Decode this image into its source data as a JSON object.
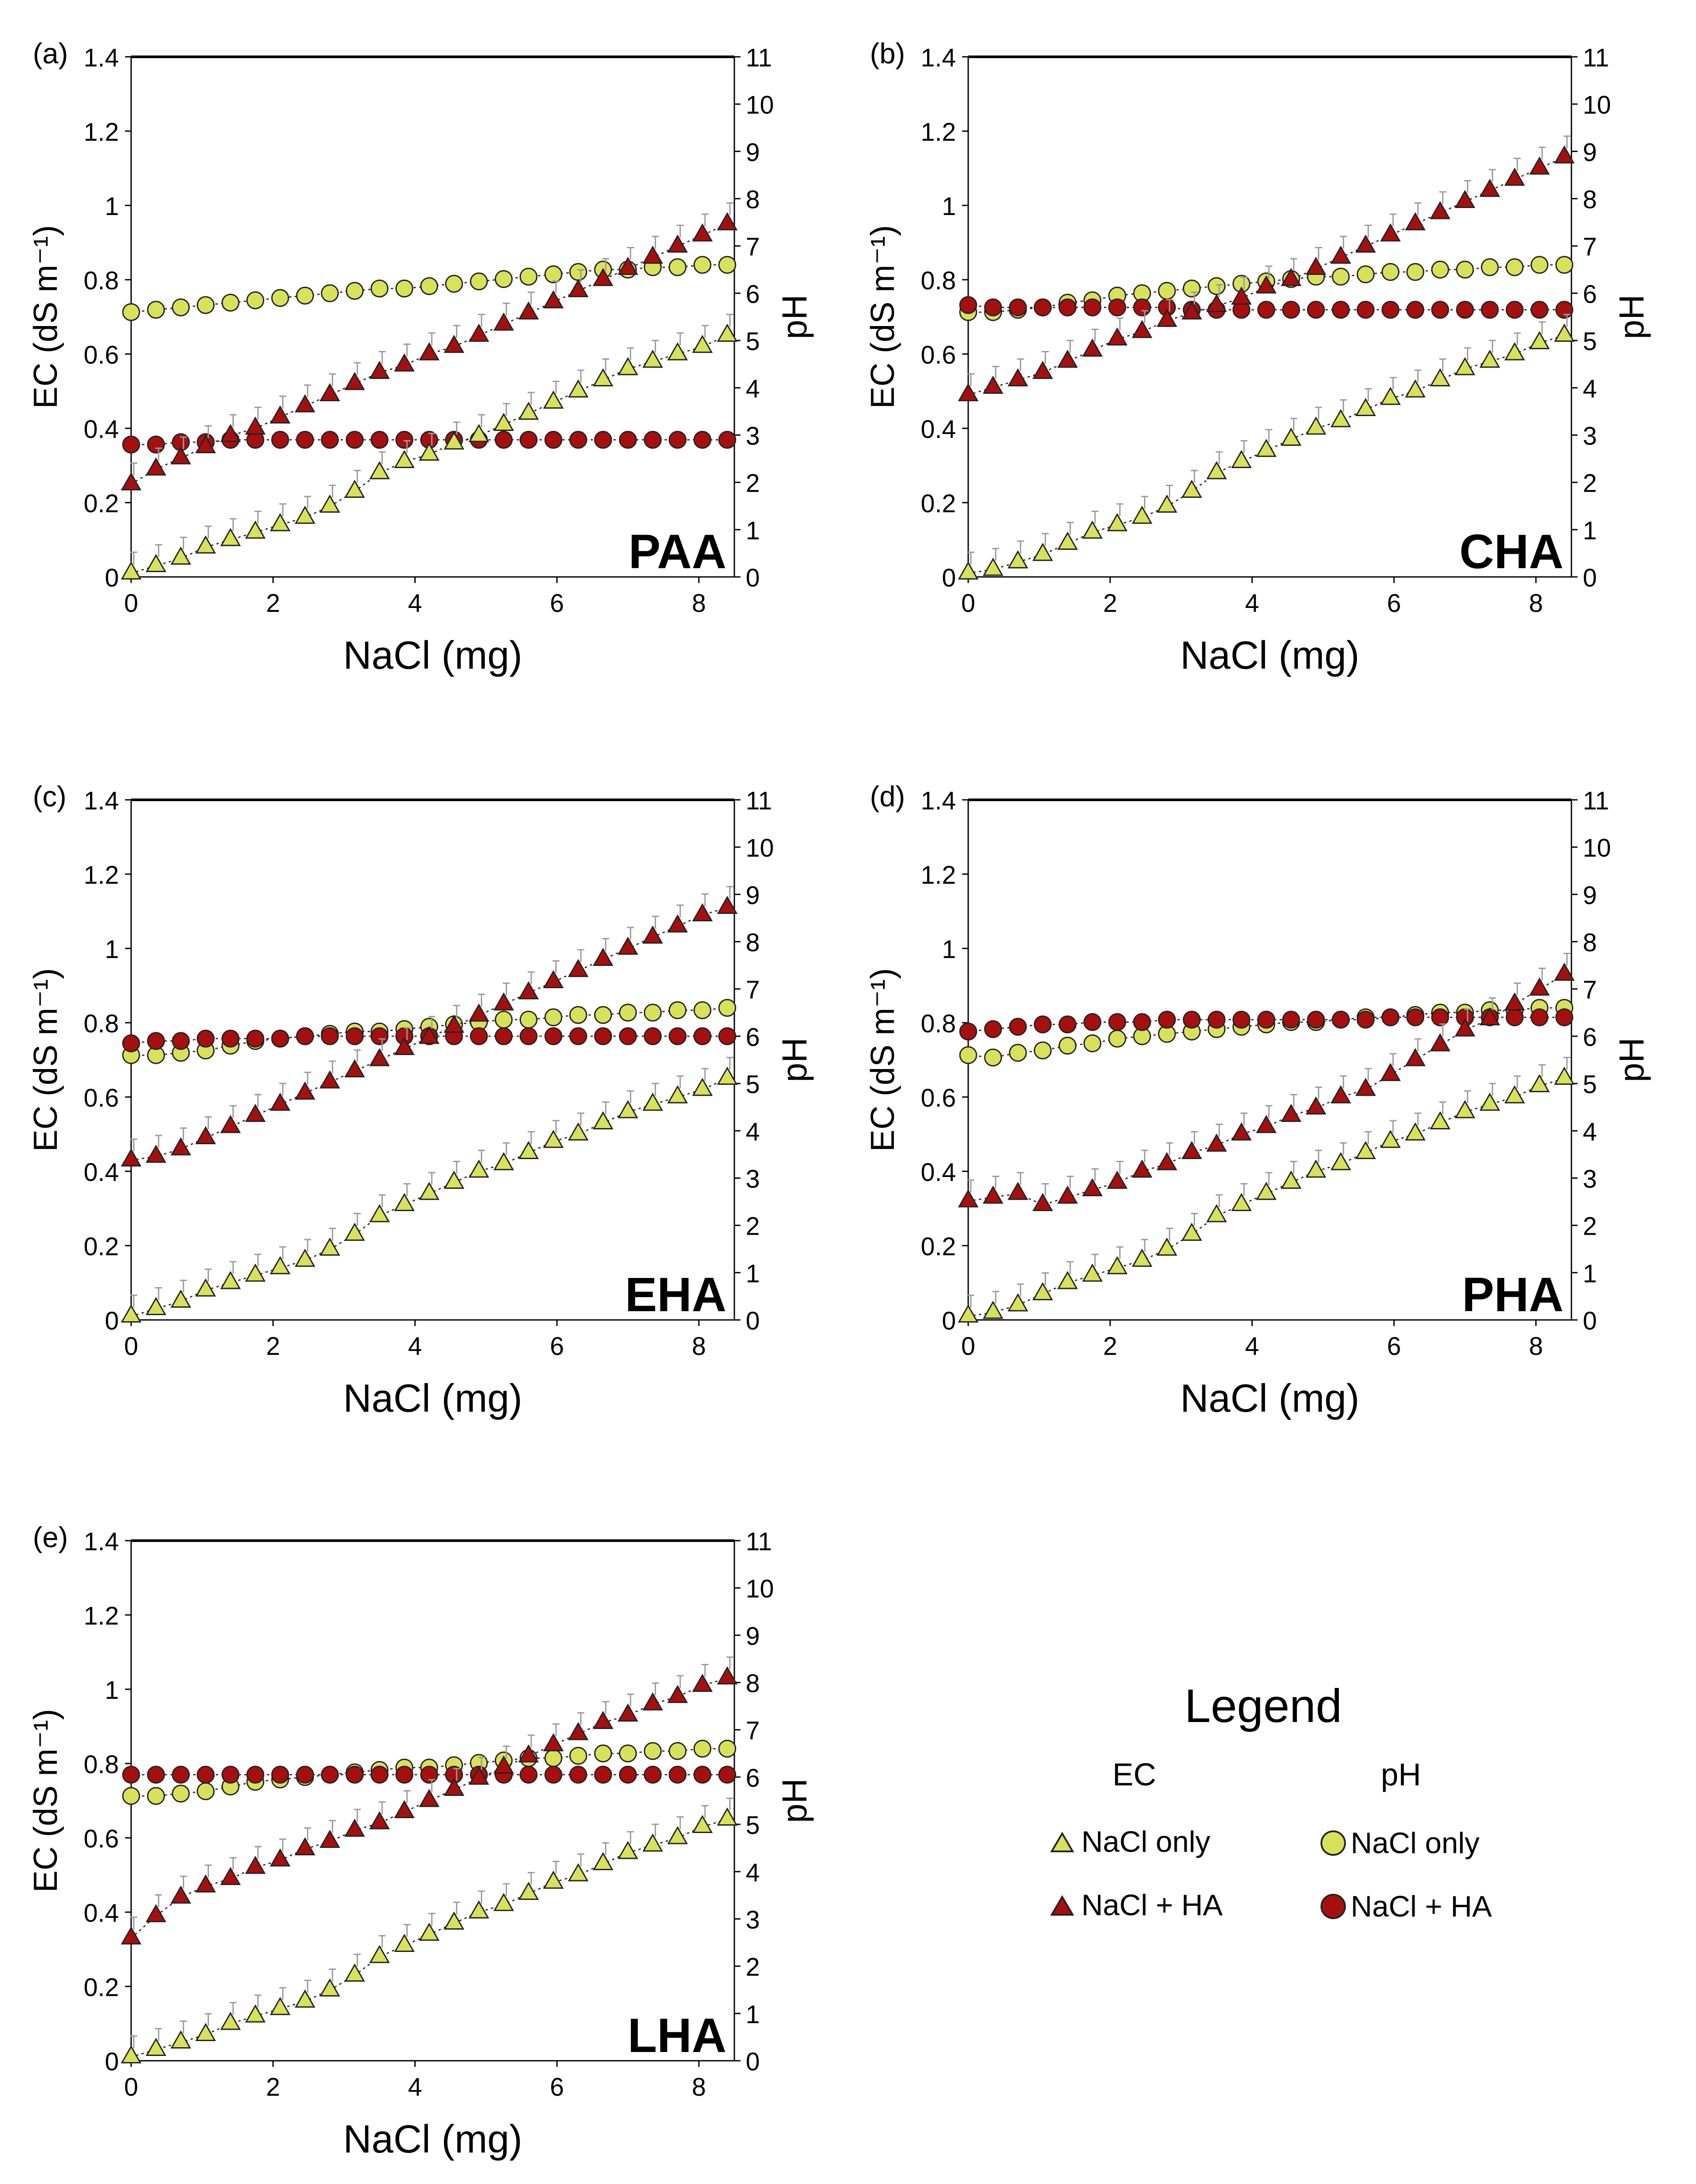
{
  "figure": {
    "colors": {
      "ec_salt": "#d9e15a",
      "ec_ha": "#a70f0f",
      "ph_salt": "#d9e15a",
      "ph_ha": "#a70f0f",
      "marker_edge": "#222222",
      "errorbar": "#9a9a9a",
      "trend": "#333333"
    }
  },
  "legend": {
    "title": "Legend",
    "ec_header": "EC",
    "ph_header": "pH",
    "ec_salt_label": "NaCl only",
    "ec_ha_label": "NaCl + HA",
    "ph_salt_label": "NaCl only",
    "ph_ha_label": "NaCl + HA"
  },
  "chart_data": [
    {
      "type": "scatter",
      "panel": "(a)",
      "title": "PAA",
      "xlabel": "NaCl (mg)",
      "ylabel": "EC (dS m⁻¹)",
      "y2label": "pH",
      "xlim": [
        0,
        8.5
      ],
      "ylim": [
        0,
        1.4
      ],
      "y2lim": [
        0,
        11
      ],
      "x_ticks": [
        "0",
        "2",
        "4",
        "6",
        "8"
      ],
      "y_ticks": [
        "0",
        "0.2",
        "0.4",
        "0.6",
        "0.8",
        "1",
        "1.2",
        "1.4"
      ],
      "y2_ticks": [
        "0",
        "1",
        "2",
        "3",
        "4",
        "5",
        "6",
        "7",
        "8",
        "9",
        "10",
        "11"
      ],
      "x": [
        0,
        0.35,
        0.7,
        1.05,
        1.4,
        1.75,
        2.1,
        2.45,
        2.8,
        3.15,
        3.5,
        3.85,
        4.2,
        4.55,
        4.9,
        5.25,
        5.6,
        5.95,
        6.3,
        6.65,
        7.0,
        7.35,
        7.7,
        8.05,
        8.4
      ],
      "series": [
        {
          "name": "EC NaCl only",
          "axis": "left",
          "marker": "triangle",
          "color_key": "ec_salt",
          "values": [
            0.01,
            0.03,
            0.05,
            0.08,
            0.1,
            0.12,
            0.14,
            0.16,
            0.19,
            0.23,
            0.28,
            0.31,
            0.33,
            0.36,
            0.38,
            0.41,
            0.44,
            0.47,
            0.5,
            0.53,
            0.56,
            0.58,
            0.6,
            0.62,
            0.65
          ]
        },
        {
          "name": "EC NaCl + HA",
          "axis": "left",
          "marker": "triangle",
          "color_key": "ec_ha",
          "values": [
            0.25,
            0.29,
            0.32,
            0.35,
            0.38,
            0.4,
            0.43,
            0.46,
            0.49,
            0.52,
            0.55,
            0.57,
            0.6,
            0.62,
            0.65,
            0.68,
            0.71,
            0.74,
            0.77,
            0.8,
            0.83,
            0.86,
            0.89,
            0.92,
            0.95
          ]
        },
        {
          "name": "pH NaCl only",
          "axis": "right",
          "marker": "circle",
          "color_key": "ph_salt",
          "values": [
            5.6,
            5.65,
            5.7,
            5.75,
            5.8,
            5.85,
            5.9,
            5.95,
            6.0,
            6.05,
            6.1,
            6.1,
            6.15,
            6.2,
            6.25,
            6.3,
            6.35,
            6.4,
            6.45,
            6.5,
            6.5,
            6.55,
            6.55,
            6.6,
            6.6
          ]
        },
        {
          "name": "pH NaCl + HA",
          "axis": "right",
          "marker": "circle",
          "color_key": "ph_ha",
          "values": [
            2.8,
            2.8,
            2.85,
            2.85,
            2.9,
            2.9,
            2.9,
            2.9,
            2.9,
            2.9,
            2.9,
            2.9,
            2.9,
            2.9,
            2.9,
            2.9,
            2.9,
            2.9,
            2.9,
            2.9,
            2.9,
            2.9,
            2.9,
            2.9,
            2.9
          ]
        }
      ]
    },
    {
      "type": "scatter",
      "panel": "(b)",
      "title": "CHA",
      "xlabel": "NaCl (mg)",
      "ylabel": "EC (dS m⁻¹)",
      "y2label": "pH",
      "xlim": [
        0,
        8.5
      ],
      "ylim": [
        0,
        1.4
      ],
      "y2lim": [
        0,
        11
      ],
      "x_ticks": [
        "0",
        "2",
        "4",
        "6",
        "8"
      ],
      "y_ticks": [
        "0",
        "0.2",
        "0.4",
        "0.6",
        "0.8",
        "1",
        "1.2",
        "1.4"
      ],
      "y2_ticks": [
        "0",
        "1",
        "2",
        "3",
        "4",
        "5",
        "6",
        "7",
        "8",
        "9",
        "10",
        "11"
      ],
      "x": [
        0,
        0.35,
        0.7,
        1.05,
        1.4,
        1.75,
        2.1,
        2.45,
        2.8,
        3.15,
        3.5,
        3.85,
        4.2,
        4.55,
        4.9,
        5.25,
        5.6,
        5.95,
        6.3,
        6.65,
        7.0,
        7.35,
        7.7,
        8.05,
        8.4
      ],
      "series": [
        {
          "name": "EC NaCl only",
          "axis": "left",
          "marker": "triangle",
          "color_key": "ec_salt",
          "values": [
            0.01,
            0.02,
            0.04,
            0.06,
            0.09,
            0.12,
            0.14,
            0.16,
            0.19,
            0.23,
            0.28,
            0.31,
            0.34,
            0.37,
            0.4,
            0.42,
            0.45,
            0.48,
            0.5,
            0.53,
            0.56,
            0.58,
            0.6,
            0.63,
            0.65
          ]
        },
        {
          "name": "EC NaCl + HA",
          "axis": "left",
          "marker": "triangle",
          "color_key": "ec_ha",
          "values": [
            0.49,
            0.51,
            0.53,
            0.55,
            0.58,
            0.61,
            0.64,
            0.66,
            0.69,
            0.71,
            0.73,
            0.75,
            0.78,
            0.8,
            0.83,
            0.86,
            0.89,
            0.92,
            0.95,
            0.98,
            1.01,
            1.04,
            1.07,
            1.1,
            1.13
          ]
        },
        {
          "name": "pH NaCl only",
          "axis": "right",
          "marker": "circle",
          "color_key": "ph_salt",
          "values": [
            5.6,
            5.6,
            5.65,
            5.7,
            5.8,
            5.85,
            5.95,
            6.0,
            6.05,
            6.1,
            6.15,
            6.2,
            6.25,
            6.3,
            6.35,
            6.35,
            6.4,
            6.45,
            6.45,
            6.5,
            6.5,
            6.55,
            6.55,
            6.6,
            6.6
          ]
        },
        {
          "name": "pH NaCl + HA",
          "axis": "right",
          "marker": "circle",
          "color_key": "ph_ha",
          "values": [
            5.75,
            5.7,
            5.7,
            5.7,
            5.7,
            5.7,
            5.7,
            5.7,
            5.7,
            5.65,
            5.65,
            5.65,
            5.65,
            5.65,
            5.65,
            5.65,
            5.65,
            5.65,
            5.65,
            5.65,
            5.65,
            5.65,
            5.65,
            5.65,
            5.65
          ]
        }
      ]
    },
    {
      "type": "scatter",
      "panel": "(c)",
      "title": "EHA",
      "xlabel": "NaCl (mg)",
      "ylabel": "EC (dS m⁻¹)",
      "y2label": "pH",
      "xlim": [
        0,
        8.5
      ],
      "ylim": [
        0,
        1.4
      ],
      "y2lim": [
        0,
        11
      ],
      "x_ticks": [
        "0",
        "2",
        "4",
        "6",
        "8"
      ],
      "y_ticks": [
        "0",
        "0.2",
        "0.4",
        "0.6",
        "0.8",
        "1",
        "1.2",
        "1.4"
      ],
      "y2_ticks": [
        "0",
        "1",
        "2",
        "3",
        "4",
        "5",
        "6",
        "7",
        "8",
        "9",
        "10",
        "11"
      ],
      "x": [
        0,
        0.35,
        0.7,
        1.05,
        1.4,
        1.75,
        2.1,
        2.45,
        2.8,
        3.15,
        3.5,
        3.85,
        4.2,
        4.55,
        4.9,
        5.25,
        5.6,
        5.95,
        6.3,
        6.65,
        7.0,
        7.35,
        7.7,
        8.05,
        8.4
      ],
      "series": [
        {
          "name": "EC NaCl only",
          "axis": "left",
          "marker": "triangle",
          "color_key": "ec_salt",
          "values": [
            0.01,
            0.03,
            0.05,
            0.08,
            0.1,
            0.12,
            0.14,
            0.16,
            0.19,
            0.23,
            0.28,
            0.31,
            0.34,
            0.37,
            0.4,
            0.42,
            0.45,
            0.48,
            0.5,
            0.53,
            0.56,
            0.58,
            0.6,
            0.62,
            0.65
          ]
        },
        {
          "name": "EC NaCl + HA",
          "axis": "left",
          "marker": "triangle",
          "color_key": "ec_ha",
          "values": [
            0.43,
            0.44,
            0.46,
            0.49,
            0.52,
            0.55,
            0.58,
            0.61,
            0.64,
            0.67,
            0.7,
            0.73,
            0.76,
            0.79,
            0.82,
            0.85,
            0.88,
            0.91,
            0.94,
            0.97,
            1.0,
            1.03,
            1.06,
            1.09,
            1.11
          ]
        },
        {
          "name": "pH NaCl only",
          "axis": "right",
          "marker": "circle",
          "color_key": "ph_salt",
          "values": [
            5.6,
            5.6,
            5.65,
            5.7,
            5.8,
            5.9,
            5.95,
            6.0,
            6.05,
            6.1,
            6.1,
            6.15,
            6.2,
            6.25,
            6.3,
            6.35,
            6.35,
            6.4,
            6.45,
            6.45,
            6.5,
            6.5,
            6.55,
            6.55,
            6.6
          ]
        },
        {
          "name": "pH NaCl + HA",
          "axis": "right",
          "marker": "circle",
          "color_key": "ph_ha",
          "values": [
            5.85,
            5.9,
            5.9,
            5.95,
            5.95,
            5.95,
            5.95,
            6.0,
            6.0,
            6.0,
            6.0,
            6.0,
            6.0,
            6.0,
            6.0,
            6.0,
            6.0,
            6.0,
            6.0,
            6.0,
            6.0,
            6.0,
            6.0,
            6.0,
            6.0
          ]
        }
      ]
    },
    {
      "type": "scatter",
      "panel": "(d)",
      "title": "PHA",
      "xlabel": "NaCl (mg)",
      "ylabel": "EC (dS m⁻¹)",
      "y2label": "pH",
      "xlim": [
        0,
        8.5
      ],
      "ylim": [
        0,
        1.4
      ],
      "y2lim": [
        0,
        11
      ],
      "x_ticks": [
        "0",
        "2",
        "4",
        "6",
        "8"
      ],
      "y_ticks": [
        "0",
        "0.2",
        "0.4",
        "0.6",
        "0.8",
        "1",
        "1.2",
        "1.4"
      ],
      "y2_ticks": [
        "0",
        "1",
        "2",
        "3",
        "4",
        "5",
        "6",
        "7",
        "8",
        "9",
        "10",
        "11"
      ],
      "x": [
        0,
        0.35,
        0.7,
        1.05,
        1.4,
        1.75,
        2.1,
        2.45,
        2.8,
        3.15,
        3.5,
        3.85,
        4.2,
        4.55,
        4.9,
        5.25,
        5.6,
        5.95,
        6.3,
        6.65,
        7.0,
        7.35,
        7.7,
        8.05,
        8.4
      ],
      "series": [
        {
          "name": "EC NaCl only",
          "axis": "left",
          "marker": "triangle",
          "color_key": "ec_salt",
          "values": [
            0.01,
            0.02,
            0.04,
            0.07,
            0.1,
            0.12,
            0.14,
            0.16,
            0.19,
            0.23,
            0.28,
            0.31,
            0.34,
            0.37,
            0.4,
            0.42,
            0.45,
            0.48,
            0.5,
            0.53,
            0.56,
            0.58,
            0.6,
            0.63,
            0.65
          ]
        },
        {
          "name": "EC NaCl + HA",
          "axis": "left",
          "marker": "triangle",
          "color_key": "ec_ha",
          "values": [
            0.32,
            0.33,
            0.34,
            0.31,
            0.33,
            0.35,
            0.37,
            0.4,
            0.42,
            0.45,
            0.47,
            0.5,
            0.52,
            0.55,
            0.57,
            0.6,
            0.62,
            0.66,
            0.7,
            0.74,
            0.78,
            0.81,
            0.85,
            0.89,
            0.93
          ]
        },
        {
          "name": "pH NaCl only",
          "axis": "right",
          "marker": "circle",
          "color_key": "ph_salt",
          "values": [
            5.6,
            5.55,
            5.65,
            5.7,
            5.8,
            5.85,
            5.95,
            6.0,
            6.05,
            6.1,
            6.15,
            6.2,
            6.25,
            6.3,
            6.3,
            6.35,
            6.4,
            6.4,
            6.45,
            6.5,
            6.5,
            6.55,
            6.55,
            6.6,
            6.6
          ]
        },
        {
          "name": "pH NaCl + HA",
          "axis": "right",
          "marker": "circle",
          "color_key": "ph_ha",
          "values": [
            6.1,
            6.15,
            6.2,
            6.25,
            6.25,
            6.3,
            6.3,
            6.3,
            6.35,
            6.35,
            6.35,
            6.35,
            6.35,
            6.35,
            6.35,
            6.35,
            6.35,
            6.4,
            6.4,
            6.4,
            6.4,
            6.4,
            6.4,
            6.4,
            6.4
          ]
        }
      ]
    },
    {
      "type": "scatter",
      "panel": "(e)",
      "title": "LHA",
      "xlabel": "NaCl (mg)",
      "ylabel": "EC (dS m⁻¹)",
      "y2label": "pH",
      "xlim": [
        0,
        8.5
      ],
      "ylim": [
        0,
        1.4
      ],
      "y2lim": [
        0,
        11
      ],
      "x_ticks": [
        "0",
        "2",
        "4",
        "6",
        "8"
      ],
      "y_ticks": [
        "0",
        "0.2",
        "0.4",
        "0.6",
        "0.8",
        "1",
        "1.2",
        "1.4"
      ],
      "y2_ticks": [
        "0",
        "1",
        "2",
        "3",
        "4",
        "5",
        "6",
        "7",
        "8",
        "9",
        "10",
        "11"
      ],
      "x": [
        0,
        0.35,
        0.7,
        1.05,
        1.4,
        1.75,
        2.1,
        2.45,
        2.8,
        3.15,
        3.5,
        3.85,
        4.2,
        4.55,
        4.9,
        5.25,
        5.6,
        5.95,
        6.3,
        6.65,
        7.0,
        7.35,
        7.7,
        8.05,
        8.4
      ],
      "series": [
        {
          "name": "EC NaCl only",
          "axis": "left",
          "marker": "triangle",
          "color_key": "ec_salt",
          "values": [
            0.01,
            0.03,
            0.05,
            0.07,
            0.1,
            0.12,
            0.14,
            0.16,
            0.19,
            0.23,
            0.28,
            0.31,
            0.34,
            0.37,
            0.4,
            0.42,
            0.45,
            0.48,
            0.5,
            0.53,
            0.56,
            0.58,
            0.6,
            0.63,
            0.65
          ]
        },
        {
          "name": "EC NaCl + HA",
          "axis": "left",
          "marker": "triangle",
          "color_key": "ec_ha",
          "values": [
            0.33,
            0.39,
            0.44,
            0.47,
            0.49,
            0.52,
            0.54,
            0.57,
            0.59,
            0.62,
            0.64,
            0.67,
            0.7,
            0.73,
            0.76,
            0.79,
            0.82,
            0.85,
            0.88,
            0.91,
            0.93,
            0.96,
            0.98,
            1.01,
            1.03
          ]
        },
        {
          "name": "pH NaCl only",
          "axis": "right",
          "marker": "circle",
          "color_key": "ph_salt",
          "values": [
            5.6,
            5.6,
            5.65,
            5.7,
            5.8,
            5.9,
            5.95,
            6.0,
            6.05,
            6.1,
            6.15,
            6.2,
            6.2,
            6.25,
            6.3,
            6.35,
            6.4,
            6.4,
            6.45,
            6.5,
            6.5,
            6.55,
            6.55,
            6.6,
            6.6
          ]
        },
        {
          "name": "pH NaCl + HA",
          "axis": "right",
          "marker": "circle",
          "color_key": "ph_ha",
          "values": [
            6.05,
            6.05,
            6.05,
            6.05,
            6.05,
            6.05,
            6.05,
            6.05,
            6.05,
            6.05,
            6.05,
            6.05,
            6.05,
            6.05,
            6.05,
            6.05,
            6.05,
            6.05,
            6.05,
            6.05,
            6.05,
            6.05,
            6.05,
            6.05,
            6.05
          ]
        }
      ]
    }
  ]
}
